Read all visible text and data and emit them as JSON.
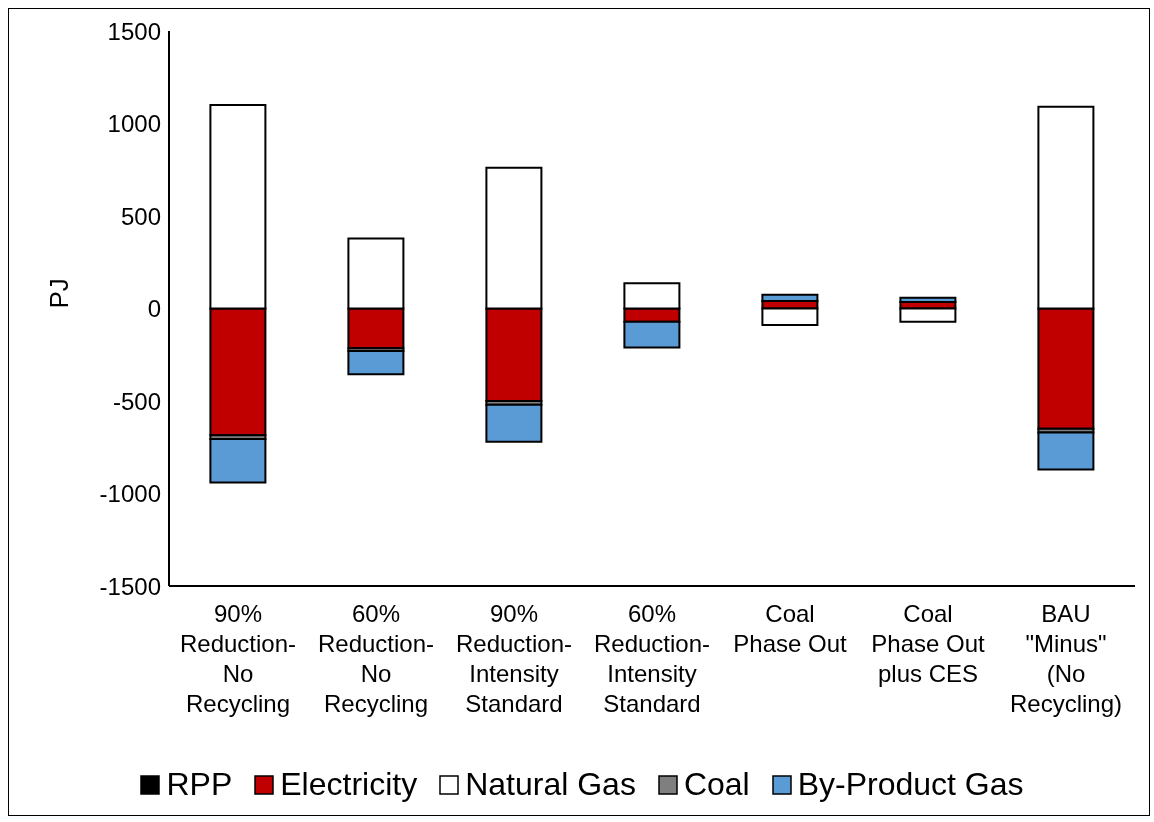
{
  "chart_data": {
    "type": "bar",
    "stacked": true,
    "ylabel": "PJ",
    "categories": [
      "90%\nReduction-\nNo\nRecycling",
      "60%\nReduction-\nNo\nRecycling",
      "90%\nReduction-\nIntensity\nStandard",
      "60%\nReduction-\nIntensity\nStandard",
      "Coal\nPhase Out",
      "Coal\nPhase Out\nplus CES",
      "BAU\n\"Minus\"\n(No\nRecycling)"
    ],
    "series": [
      {
        "name": "RPP",
        "color": "#000000",
        "values": [
          null,
          null,
          null,
          null,
          null,
          null,
          null
        ]
      },
      {
        "name": "Electricity",
        "color": "#c00000",
        "values": [
          -685,
          -215,
          -500,
          -72,
          40,
          35,
          -650
        ]
      },
      {
        "name": "Natural Gas",
        "color": "#ffffff",
        "values": [
          1100,
          378,
          761,
          136,
          -89,
          -72,
          1090
        ]
      },
      {
        "name": "Coal",
        "color": "#7f7f7f",
        "values": [
          -20,
          -15,
          -20,
          null,
          null,
          null,
          -20
        ]
      },
      {
        "name": "By-Product Gas",
        "color": "#5b9bd5",
        "values": [
          -235,
          -125,
          -200,
          -139,
          34,
          23,
          -200
        ]
      }
    ],
    "ylim": [
      -1500,
      1500
    ],
    "yticks": [
      -1500,
      -1000,
      -500,
      0,
      500,
      1000,
      1500
    ],
    "grid": false,
    "legend": "bottom"
  }
}
